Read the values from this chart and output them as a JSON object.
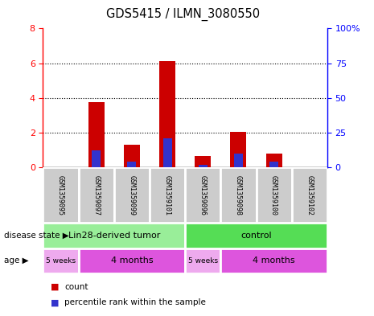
{
  "title": "GDS5415 / ILMN_3080550",
  "samples": [
    "GSM1359095",
    "GSM1359097",
    "GSM1359099",
    "GSM1359101",
    "GSM1359096",
    "GSM1359098",
    "GSM1359100",
    "GSM1359102"
  ],
  "count_values": [
    0.0,
    3.75,
    1.3,
    6.1,
    0.65,
    2.05,
    0.8,
    0.0
  ],
  "percentile_values": [
    0,
    12.5,
    4.5,
    21,
    2.0,
    10.0,
    4.5,
    0
  ],
  "ylim_left": [
    0,
    8
  ],
  "ylim_right": [
    0,
    100
  ],
  "yticks_left": [
    0,
    2,
    4,
    6,
    8
  ],
  "yticks_right": [
    0,
    25,
    50,
    75,
    100
  ],
  "ytick_labels_right": [
    "0",
    "25",
    "50",
    "75",
    "100%"
  ],
  "count_color": "#cc0000",
  "percentile_color": "#3333cc",
  "disease_state_groups": [
    {
      "label": "Lin28-derived tumor",
      "start": 0,
      "end": 4,
      "color": "#99ee99"
    },
    {
      "label": "control",
      "start": 4,
      "end": 8,
      "color": "#55dd55"
    }
  ],
  "age_groups": [
    {
      "label": "5 weeks",
      "start": 0,
      "end": 1,
      "color": "#eeaaee"
    },
    {
      "label": "4 months",
      "start": 1,
      "end": 4,
      "color": "#dd55dd"
    },
    {
      "label": "5 weeks",
      "start": 4,
      "end": 5,
      "color": "#eeaaee"
    },
    {
      "label": "4 months",
      "start": 5,
      "end": 8,
      "color": "#dd55dd"
    }
  ],
  "sample_box_color": "#cccccc",
  "bg_color": "#ffffff",
  "legend_count_label": "count",
  "legend_percentile_label": "percentile rank within the sample",
  "disease_state_label": "disease state",
  "age_label": "age"
}
